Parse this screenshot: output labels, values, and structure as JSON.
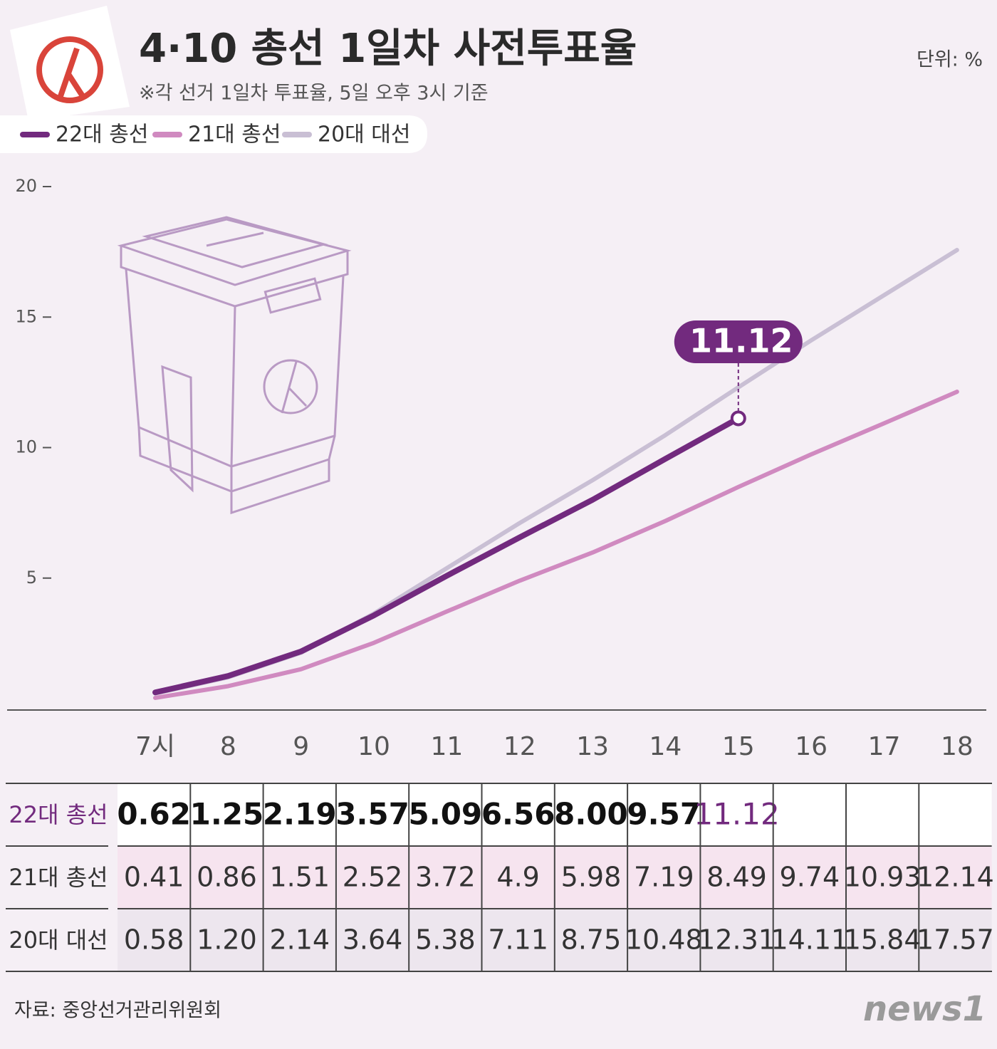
{
  "chart_data": {
    "type": "line",
    "title": "4·10 총선 1일차 사전투표율",
    "subtitle": "※각 선거 1일차 투표율, 5일 오후 3시 기준",
    "unit": "단위: %",
    "categories": [
      "7시",
      "8",
      "9",
      "10",
      "11",
      "12",
      "13",
      "14",
      "15",
      "16",
      "17",
      "18"
    ],
    "series": [
      {
        "name": "22대 총선",
        "color": "#722a7e",
        "values": [
          0.62,
          1.25,
          2.19,
          3.57,
          5.09,
          6.56,
          8.0,
          9.57,
          11.12,
          null,
          null,
          null
        ],
        "value_labels": [
          "0.62",
          "1.25",
          "2.19",
          "3.57",
          "5.09",
          "6.56",
          "8.00",
          "9.57",
          "11.12",
          null,
          null,
          null
        ]
      },
      {
        "name": "21대 총선",
        "color": "#d08ac0",
        "values": [
          0.41,
          0.86,
          1.51,
          2.52,
          3.72,
          4.9,
          5.98,
          7.19,
          8.49,
          9.74,
          10.93,
          12.14
        ]
      },
      {
        "name": "20대 대선",
        "color": "#c9bfd4",
        "values": [
          0.58,
          1.2,
          2.14,
          3.64,
          5.38,
          7.11,
          8.75,
          10.48,
          12.31,
          14.11,
          15.84,
          17.57
        ],
        "value_labels": [
          "0.58",
          "1.20",
          "2.14",
          "3.64",
          "5.38",
          "7.11",
          "8.75",
          "10.48",
          "12.31",
          "14.11",
          "15.84",
          "17.57"
        ]
      }
    ],
    "ylim": [
      0,
      20
    ],
    "yticks": [
      5,
      10,
      15,
      20
    ],
    "source": "자료: 중앙선거관리위원회",
    "brand": "news1"
  }
}
